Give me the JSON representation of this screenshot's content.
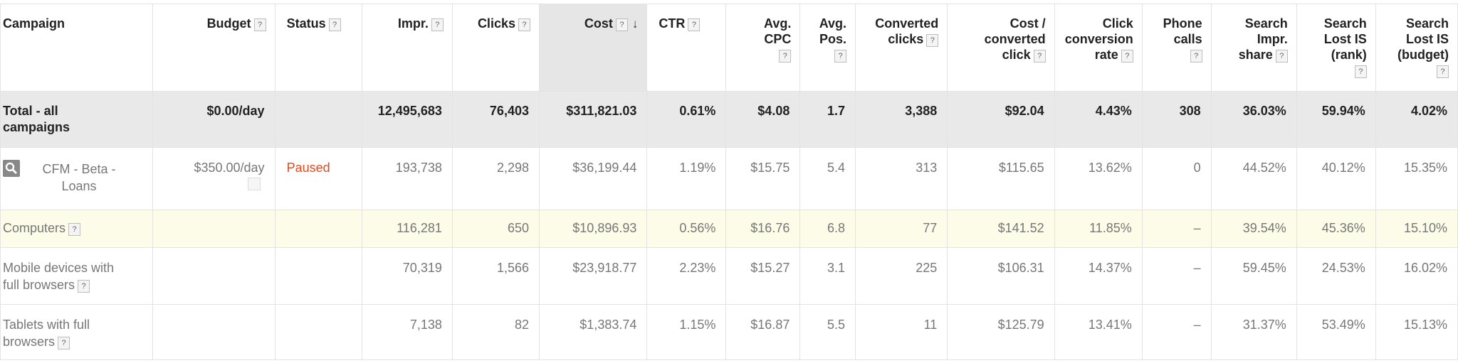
{
  "header": {
    "campaign": "Campaign",
    "budget": "Budget",
    "status": "Status",
    "impr": "Impr.",
    "clicks": "Clicks",
    "cost": "Cost",
    "ctr": "CTR",
    "avg_cpc_1": "Avg.",
    "avg_cpc_2": "CPC",
    "avg_pos_1": "Avg.",
    "avg_pos_2": "Pos.",
    "conv_clicks_1": "Converted",
    "conv_clicks_2": "clicks",
    "cost_conv_1": "Cost /",
    "cost_conv_2": "converted",
    "cost_conv_3": "click",
    "ccr_1": "Click",
    "ccr_2": "conversion",
    "ccr_3": "rate",
    "phone_1": "Phone",
    "phone_2": "calls",
    "sis_1": "Search",
    "sis_2": "Impr.",
    "sis_3": "share",
    "slr_1": "Search",
    "slr_2": "Lost IS",
    "slr_3": "(rank)",
    "slb_1": "Search",
    "slb_2": "Lost IS",
    "slb_3": "(budget)",
    "help_glyph": "?",
    "sort_glyph": "↓"
  },
  "total": {
    "label_1": "Total - all",
    "label_2": "campaigns",
    "budget": "$0.00/day",
    "status": "",
    "impr": "12,495,683",
    "clicks": "76,403",
    "cost": "$311,821.03",
    "ctr": "0.61%",
    "avg_cpc": "$4.08",
    "avg_pos": "1.7",
    "conv_clicks": "3,388",
    "cost_conv": "$92.04",
    "ccr": "4.43%",
    "phone": "308",
    "sis": "36.03%",
    "slr": "59.94%",
    "slb": "4.02%"
  },
  "rows": [
    {
      "name_1": "CFM - Beta -",
      "name_2": "Loans",
      "budget": "$350.00/day",
      "status": "Paused",
      "impr": "193,738",
      "clicks": "2,298",
      "cost": "$36,199.44",
      "ctr": "1.19%",
      "avg_cpc": "$15.75",
      "avg_pos": "5.4",
      "conv_clicks": "313",
      "cost_conv": "$115.65",
      "ccr": "13.62%",
      "phone": "0",
      "sis": "44.52%",
      "slr": "40.12%",
      "slb": "15.35%"
    },
    {
      "name_1": "Computers",
      "impr": "116,281",
      "clicks": "650",
      "cost": "$10,896.93",
      "ctr": "0.56%",
      "avg_cpc": "$16.76",
      "avg_pos": "6.8",
      "conv_clicks": "77",
      "cost_conv": "$141.52",
      "ccr": "11.85%",
      "phone": "–",
      "sis": "39.54%",
      "slr": "45.36%",
      "slb": "15.10%"
    },
    {
      "name_1": "Mobile devices with",
      "name_2": "full browsers",
      "impr": "70,319",
      "clicks": "1,566",
      "cost": "$23,918.77",
      "ctr": "2.23%",
      "avg_cpc": "$15.27",
      "avg_pos": "3.1",
      "conv_clicks": "225",
      "cost_conv": "$106.31",
      "ccr": "14.37%",
      "phone": "–",
      "sis": "59.45%",
      "slr": "24.53%",
      "slb": "16.02%"
    },
    {
      "name_1": "Tablets with full",
      "name_2": "browsers",
      "impr": "7,138",
      "clicks": "82",
      "cost": "$1,383.74",
      "ctr": "1.15%",
      "avg_cpc": "$16.87",
      "avg_pos": "5.5",
      "conv_clicks": "11",
      "cost_conv": "$125.79",
      "ccr": "13.41%",
      "phone": "–",
      "sis": "31.37%",
      "slr": "53.49%",
      "slb": "15.13%"
    }
  ],
  "icons": {
    "search": "search-icon",
    "edit": "edit-icon",
    "help": "help-icon",
    "sort": "sort-desc-icon"
  },
  "colors": {
    "paused": "#dd4b22",
    "total_bg": "#e9e9e9",
    "sorted_header_bg": "#e6e6e6",
    "highlight_row_bg": "#fcfce8"
  }
}
